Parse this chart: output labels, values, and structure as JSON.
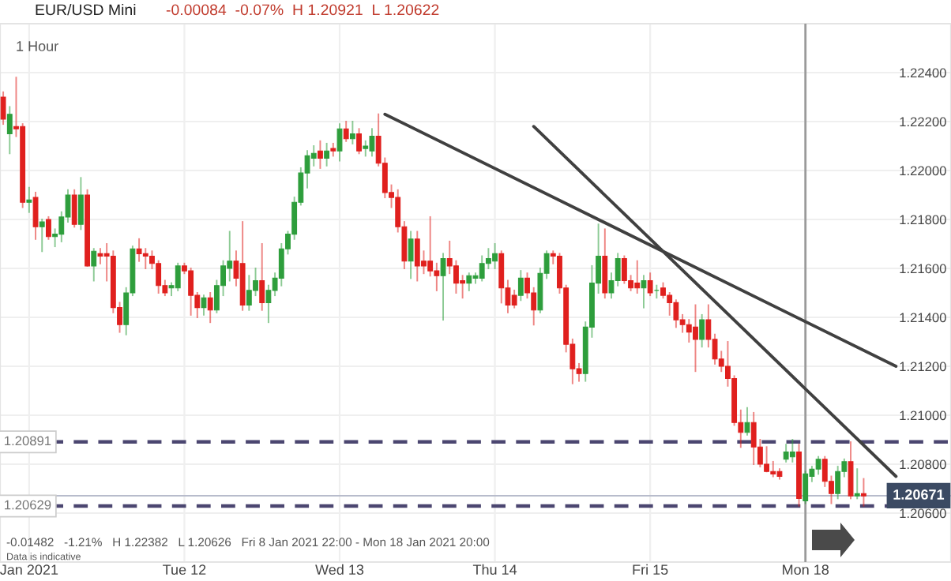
{
  "chart_data": {
    "type": "candlestick",
    "title": "EUR/USD Mini",
    "subtitle": "-0.00084  -0.07%  H 1.20921  L 1.20622",
    "annotations": [
      "1 Hour",
      "-0.01482   -1.21%   H 1.22382   L 1.20626   Fri 8 Jan 2021 22:00 - Mon 18 Jan 2021 20:00",
      "Data is indicative"
    ],
    "categories": [
      null,
      null,
      null,
      null,
      "Jan 2021",
      null,
      null,
      null,
      null,
      null,
      null,
      null,
      null,
      null,
      null,
      null,
      null,
      null,
      null,
      null,
      null,
      null,
      null,
      null,
      null,
      null,
      null,
      null,
      "Tue 12",
      null,
      null,
      null,
      null,
      null,
      null,
      null,
      null,
      null,
      null,
      null,
      null,
      null,
      null,
      null,
      null,
      null,
      null,
      null,
      null,
      null,
      null,
      null,
      "Wed 13",
      null,
      null,
      null,
      null,
      null,
      null,
      null,
      null,
      null,
      null,
      null,
      null,
      null,
      null,
      null,
      null,
      null,
      null,
      null,
      null,
      null,
      null,
      null,
      "Thu 14",
      null,
      null,
      null,
      null,
      null,
      null,
      null,
      null,
      null,
      null,
      null,
      null,
      null,
      null,
      null,
      null,
      null,
      null,
      null,
      null,
      null,
      null,
      null,
      "Fri 15",
      null,
      null,
      null,
      null,
      null,
      null,
      null,
      null,
      null,
      null,
      null,
      null,
      null,
      null,
      null,
      null,
      null,
      null,
      null,
      null,
      null,
      null,
      null,
      "Mon 18",
      null,
      null,
      null,
      null,
      null,
      null,
      null,
      null,
      null,
      null,
      null,
      null,
      null,
      null,
      null,
      null,
      null,
      null,
      null,
      null,
      null,
      null
    ],
    "ohlc": [
      [
        1.223,
        1.2232,
        1.2219,
        1.2221
      ],
      [
        1.2215,
        1.2226,
        1.2207,
        1.2223
      ],
      [
        1.2218,
        1.2238,
        1.2214,
        1.2217
      ],
      [
        1.2218,
        1.2219,
        1.2185,
        1.2187
      ],
      [
        1.2187,
        1.2193,
        1.2183,
        1.2188
      ],
      [
        1.2189,
        1.2191,
        1.2172,
        1.2177
      ],
      [
        1.2177,
        1.218,
        1.2167,
        1.2179
      ],
      [
        1.218,
        1.2181,
        1.2172,
        1.2173
      ],
      [
        1.2173,
        1.2176,
        1.2169,
        1.2174
      ],
      [
        1.2174,
        1.2183,
        1.2171,
        1.2181
      ],
      [
        1.2181,
        1.2192,
        1.2179,
        1.219
      ],
      [
        1.219,
        1.2192,
        1.2177,
        1.2178
      ],
      [
        1.2178,
        1.2197,
        1.2176,
        1.219
      ],
      [
        1.219,
        1.2192,
        1.2161,
        1.2161
      ],
      [
        1.2161,
        1.2168,
        1.2155,
        1.2167
      ],
      [
        1.2166,
        1.2168,
        1.2162,
        1.2165
      ],
      [
        1.2166,
        1.217,
        1.2155,
        1.2165
      ],
      [
        1.2165,
        1.2167,
        1.2142,
        1.2144
      ],
      [
        1.2144,
        1.2146,
        1.2134,
        1.2137
      ],
      [
        1.2137,
        1.2152,
        1.2133,
        1.215
      ],
      [
        1.215,
        1.2169,
        1.2149,
        1.2168
      ],
      [
        1.2168,
        1.2172,
        1.2163,
        1.2166
      ],
      [
        1.2166,
        1.2168,
        1.216,
        1.2165
      ],
      [
        1.2165,
        1.2167,
        1.216,
        1.2162
      ],
      [
        1.2162,
        1.2163,
        1.215,
        1.2153
      ],
      [
        1.2153,
        1.2155,
        1.2149,
        1.215
      ],
      [
        1.2152,
        1.2154,
        1.2149,
        1.2153
      ],
      [
        1.2152,
        1.2162,
        1.2151,
        1.2161
      ],
      [
        1.2161,
        1.2162,
        1.2158,
        1.2159
      ],
      [
        1.2159,
        1.216,
        1.2141,
        1.2149
      ],
      [
        1.2149,
        1.215,
        1.214,
        1.2144
      ],
      [
        1.2144,
        1.2149,
        1.2141,
        1.2148
      ],
      [
        1.2148,
        1.215,
        1.2138,
        1.2143
      ],
      [
        1.2143,
        1.2155,
        1.2142,
        1.2153
      ],
      [
        1.2153,
        1.2163,
        1.2149,
        1.2161
      ],
      [
        1.216,
        1.2175,
        1.2155,
        1.2163
      ],
      [
        1.2163,
        1.2167,
        1.2153,
        1.2156
      ],
      [
        1.2162,
        1.2179,
        1.2143,
        1.2145
      ],
      [
        1.2145,
        1.2157,
        1.2143,
        1.2151
      ],
      [
        1.2151,
        1.216,
        1.2149,
        1.2155
      ],
      [
        1.2155,
        1.217,
        1.2143,
        1.2146
      ],
      [
        1.2146,
        1.2153,
        1.2138,
        1.2151
      ],
      [
        1.2151,
        1.2158,
        1.2149,
        1.2156
      ],
      [
        1.2156,
        1.217,
        1.2153,
        1.2168
      ],
      [
        1.2168,
        1.2175,
        1.2166,
        1.2174
      ],
      [
        1.2174,
        1.2189,
        1.2172,
        1.2187
      ],
      [
        1.2187,
        1.2201,
        1.2186,
        1.2199
      ],
      [
        1.2199,
        1.2208,
        1.2193,
        1.2206
      ],
      [
        1.2205,
        1.221,
        1.2202,
        1.2207
      ],
      [
        1.2208,
        1.2212,
        1.2201,
        1.2205
      ],
      [
        1.2205,
        1.2211,
        1.2202,
        1.2208
      ],
      [
        1.2209,
        1.2211,
        1.2206,
        1.2208
      ],
      [
        1.2208,
        1.2219,
        1.2204,
        1.2217
      ],
      [
        1.2217,
        1.222,
        1.2212,
        1.2213
      ],
      [
        1.2213,
        1.222,
        1.2211,
        1.2215
      ],
      [
        1.2215,
        1.2217,
        1.2207,
        1.2208
      ],
      [
        1.2209,
        1.2212,
        1.2206,
        1.221
      ],
      [
        1.2208,
        1.2217,
        1.2206,
        1.2214
      ],
      [
        1.2214,
        1.2223,
        1.2202,
        1.2203
      ],
      [
        1.2203,
        1.2205,
        1.2189,
        1.2191
      ],
      [
        1.2191,
        1.2194,
        1.2185,
        1.2189
      ],
      [
        1.2189,
        1.2192,
        1.2175,
        1.2177
      ],
      [
        1.2177,
        1.2179,
        1.216,
        1.2163
      ],
      [
        1.2163,
        1.2175,
        1.2156,
        1.2172
      ],
      [
        1.2172,
        1.2175,
        1.2155,
        1.2161
      ],
      [
        1.2163,
        1.2167,
        1.2158,
        1.2161
      ],
      [
        1.2163,
        1.2181,
        1.2157,
        1.2159
      ],
      [
        1.2159,
        1.2162,
        1.2151,
        1.2157
      ],
      [
        1.2157,
        1.2166,
        1.2139,
        1.2164
      ],
      [
        1.2164,
        1.2171,
        1.2158,
        1.2161
      ],
      [
        1.2161,
        1.2163,
        1.215,
        1.2154
      ],
      [
        1.2155,
        1.2157,
        1.2148,
        1.2154
      ],
      [
        1.2154,
        1.2158,
        1.2151,
        1.2157
      ],
      [
        1.2156,
        1.2158,
        1.2154,
        1.2157
      ],
      [
        1.2156,
        1.2165,
        1.2155,
        1.2162
      ],
      [
        1.2162,
        1.2168,
        1.216,
        1.2164
      ],
      [
        1.2163,
        1.217,
        1.216,
        1.2166
      ],
      [
        1.2166,
        1.2167,
        1.2146,
        1.2152
      ],
      [
        1.2152,
        1.2155,
        1.2142,
        1.2145
      ],
      [
        1.2149,
        1.2151,
        1.2144,
        1.2145
      ],
      [
        1.2149,
        1.2159,
        1.2147,
        1.2156
      ],
      [
        1.2156,
        1.2158,
        1.2148,
        1.215
      ],
      [
        1.215,
        1.2152,
        1.2137,
        1.2143
      ],
      [
        1.2143,
        1.216,
        1.2142,
        1.2158
      ],
      [
        1.2158,
        1.2167,
        1.2156,
        1.2166
      ],
      [
        1.2166,
        1.2167,
        1.2162,
        1.2165
      ],
      [
        1.2165,
        1.2166,
        1.215,
        1.2152
      ],
      [
        1.2152,
        1.2153,
        1.2126,
        1.2129
      ],
      [
        1.2129,
        1.2131,
        1.2113,
        1.2119
      ],
      [
        1.2119,
        1.2121,
        1.2114,
        1.2117
      ],
      [
        1.2117,
        1.2138,
        1.2114,
        1.2136
      ],
      [
        1.2136,
        1.2161,
        1.2132,
        1.2154
      ],
      [
        1.2154,
        1.2178,
        1.215,
        1.2165
      ],
      [
        1.2165,
        1.2176,
        1.2148,
        1.215
      ],
      [
        1.215,
        1.2158,
        1.2148,
        1.2155
      ],
      [
        1.2155,
        1.2166,
        1.2153,
        1.2164
      ],
      [
        1.2164,
        1.2165,
        1.2154,
        1.2155
      ],
      [
        1.2155,
        1.2157,
        1.2151,
        1.2152
      ],
      [
        1.2154,
        1.2163,
        1.215,
        1.2152
      ],
      [
        1.2152,
        1.2157,
        1.2144,
        1.2155
      ],
      [
        1.2155,
        1.2158,
        1.2149,
        1.215
      ],
      [
        1.2151,
        1.2153,
        1.2148,
        1.2151
      ],
      [
        1.2152,
        1.2154,
        1.2148,
        1.2149
      ],
      [
        1.2149,
        1.215,
        1.2141,
        1.2146
      ],
      [
        1.2146,
        1.2147,
        1.2136,
        1.2139
      ],
      [
        1.2139,
        1.2141,
        1.2134,
        1.2137
      ],
      [
        1.2137,
        1.2139,
        1.213,
        1.2134
      ],
      [
        1.2136,
        1.2145,
        1.2118,
        1.2131
      ],
      [
        1.2131,
        1.2141,
        1.2128,
        1.2139
      ],
      [
        1.2139,
        1.2145,
        1.2128,
        1.2131
      ],
      [
        1.2131,
        1.2133,
        1.2121,
        1.2123
      ],
      [
        1.2123,
        1.2126,
        1.2118,
        1.212
      ],
      [
        1.212,
        1.213,
        1.2112,
        1.2115
      ],
      [
        1.2115,
        1.2116,
        1.2096,
        1.2097
      ],
      [
        1.2097,
        1.2102,
        1.2087,
        1.2093
      ],
      [
        1.2093,
        1.2103,
        1.2092,
        1.2097
      ],
      [
        1.2097,
        1.2101,
        1.208,
        1.2087
      ],
      [
        1.2087,
        1.209,
        1.2079,
        1.208
      ],
      [
        1.208,
        1.2087,
        1.2077,
        1.2077
      ],
      [
        1.2077,
        1.2081,
        1.2075,
        1.2076
      ],
      [
        1.2077,
        1.2078,
        1.2074,
        1.2075
      ],
      [
        1.2082,
        1.2088,
        1.2081,
        1.2085
      ],
      [
        1.2083,
        1.209,
        1.2081,
        1.2085
      ],
      [
        1.2085,
        1.2088,
        1.2063,
        1.2066
      ],
      [
        1.2065,
        1.2077,
        1.2064,
        1.2076
      ],
      [
        1.2075,
        1.2079,
        1.2073,
        1.2078
      ],
      [
        1.2078,
        1.2083,
        1.2076,
        1.2082
      ],
      [
        1.2082,
        1.2083,
        1.2071,
        1.2073
      ],
      [
        1.2073,
        1.2075,
        1.2064,
        1.2068
      ],
      [
        1.2068,
        1.2079,
        1.2066,
        1.2077
      ],
      [
        1.2077,
        1.2082,
        1.2075,
        1.2081
      ],
      [
        1.2081,
        1.2089,
        1.2066,
        1.2067
      ],
      [
        1.2067,
        1.2078,
        1.2066,
        1.2068
      ],
      [
        1.2068,
        1.2074,
        1.2063,
        1.2067
      ],
      null,
      null,
      null,
      null,
      null,
      null,
      null,
      null,
      null,
      null,
      null,
      null,
      null
    ],
    "colors": [
      "#e0201e",
      "#2e9e3c",
      "#e0201e",
      "#e0201e",
      "#2e9e3c",
      "#e0201e",
      "#2e9e3c",
      "#e0201e",
      "#2e9e3c",
      "#2e9e3c",
      "#2e9e3c",
      "#e0201e",
      "#2e9e3c",
      "#e0201e",
      "#2e9e3c",
      "#e0201e",
      "#e0201e",
      "#e0201e",
      "#e0201e",
      "#2e9e3c",
      "#2e9e3c",
      "#e0201e",
      "#e0201e",
      "#e0201e",
      "#e0201e",
      "#e0201e",
      "#2e9e3c",
      "#2e9e3c",
      "#e0201e",
      "#e0201e",
      "#e0201e",
      "#2e9e3c",
      "#e0201e",
      "#2e9e3c",
      "#2e9e3c",
      "#2e9e3c",
      "#e0201e",
      "#e0201e",
      "#2e9e3c",
      "#2e9e3c",
      "#e0201e",
      "#2e9e3c",
      "#2e9e3c",
      "#2e9e3c",
      "#2e9e3c",
      "#2e9e3c",
      "#2e9e3c",
      "#2e9e3c",
      "#2e9e3c",
      "#e0201e",
      "#2e9e3c",
      "#e0201e",
      "#2e9e3c",
      "#e0201e",
      "#2e9e3c",
      "#e0201e",
      "#2e9e3c",
      "#2e9e3c",
      "#e0201e",
      "#e0201e",
      "#e0201e",
      "#e0201e",
      "#e0201e",
      "#2e9e3c",
      "#e0201e",
      "#e0201e",
      "#e0201e",
      "#e0201e",
      "#2e9e3c",
      "#e0201e",
      "#e0201e",
      "#e0201e",
      "#2e9e3c",
      "#2e9e3c",
      "#2e9e3c",
      "#2e9e3c",
      "#2e9e3c",
      "#e0201e",
      "#e0201e",
      "#e0201e",
      "#2e9e3c",
      "#e0201e",
      "#e0201e",
      "#2e9e3c",
      "#2e9e3c",
      "#e0201e",
      "#e0201e",
      "#e0201e",
      "#e0201e",
      "#e0201e",
      "#2e9e3c",
      "#2e9e3c",
      "#2e9e3c",
      "#e0201e",
      "#2e9e3c",
      "#2e9e3c",
      "#e0201e",
      "#e0201e",
      "#e0201e",
      "#2e9e3c",
      "#e0201e",
      "#2e9e3c",
      "#e0201e",
      "#e0201e",
      "#e0201e",
      "#e0201e",
      "#e0201e",
      "#e0201e",
      "#2e9e3c",
      "#e0201e",
      "#e0201e",
      "#e0201e",
      "#e0201e",
      "#e0201e",
      "#e0201e",
      "#2e9e3c",
      "#e0201e",
      "#e0201e",
      "#e0201e",
      "#e0201e",
      "#e0201e",
      "#2e9e3c",
      "#2e9e3c",
      "#e0201e",
      "#2e9e3c",
      "#2e9e3c",
      "#2e9e3c",
      "#e0201e",
      "#e0201e",
      "#2e9e3c",
      "#2e9e3c",
      "#e0201e",
      "#2e9e3c",
      "#e0201e",
      null,
      null,
      null,
      null,
      null,
      null,
      null,
      null,
      null,
      null,
      null,
      null,
      null
    ],
    "series": [
      {
        "type": "line",
        "color": "#404040",
        "values": [
          null,
          null,
          null,
          null,
          null,
          null,
          null,
          null,
          null,
          null,
          null,
          null,
          null,
          null,
          null,
          null,
          null,
          null,
          null,
          null,
          null,
          null,
          null,
          null,
          null,
          null,
          null,
          null,
          null,
          null,
          null,
          null,
          null,
          null,
          null,
          null,
          null,
          null,
          null,
          null,
          null,
          null,
          null,
          null,
          null,
          null,
          null,
          null,
          null,
          null,
          null,
          null,
          null,
          null,
          null,
          null,
          null,
          null,
          null,
          1.2223,
          null,
          null,
          null,
          null,
          null,
          null,
          null,
          null,
          null,
          null,
          null,
          null,
          null,
          null,
          null,
          null,
          null,
          null,
          null,
          null,
          null,
          null,
          null,
          null,
          null,
          null,
          null,
          null,
          null,
          null,
          null,
          null,
          null,
          null,
          null,
          null,
          null,
          null,
          null,
          null,
          null,
          null,
          null,
          null,
          null,
          null,
          null,
          null,
          null,
          null,
          null,
          null,
          null,
          null,
          null,
          null,
          null,
          null,
          null,
          null,
          null,
          null,
          null,
          null,
          null,
          null,
          null,
          null,
          null,
          null,
          null,
          null,
          null,
          null,
          null,
          null,
          null,
          null,
          1.212,
          null,
          null,
          null,
          null,
          null,
          null,
          null,
          null
        ]
      },
      {
        "type": "line",
        "color": "#404040",
        "values": [
          null,
          null,
          null,
          null,
          null,
          null,
          null,
          null,
          null,
          null,
          null,
          null,
          null,
          null,
          null,
          null,
          null,
          null,
          null,
          null,
          null,
          null,
          null,
          null,
          null,
          null,
          null,
          null,
          null,
          null,
          null,
          null,
          null,
          null,
          null,
          null,
          null,
          null,
          null,
          null,
          null,
          null,
          null,
          null,
          null,
          null,
          null,
          null,
          null,
          null,
          null,
          null,
          null,
          null,
          null,
          null,
          null,
          null,
          null,
          null,
          null,
          null,
          null,
          null,
          null,
          null,
          null,
          null,
          null,
          null,
          null,
          null,
          null,
          null,
          null,
          null,
          null,
          null,
          null,
          null,
          null,
          null,
          1.2218,
          null,
          null,
          null,
          null,
          null,
          null,
          null,
          null,
          null,
          null,
          null,
          null,
          null,
          null,
          null,
          null,
          null,
          null,
          null,
          null,
          null,
          null,
          null,
          null,
          null,
          null,
          null,
          null,
          null,
          null,
          null,
          null,
          null,
          null,
          null,
          null,
          null,
          null,
          null,
          null,
          null,
          null,
          null,
          null,
          null,
          null,
          null,
          null,
          null,
          null,
          null,
          null,
          null,
          null,
          null,
          1.2075,
          null,
          null,
          null,
          null,
          null,
          null,
          null,
          null
        ]
      }
    ],
    "ref_lines": [
      {
        "axis": "y",
        "value": 1.20891,
        "label": "1.20891",
        "color": "#4b4670",
        "line_style": "dashed"
      },
      {
        "axis": "y",
        "value": 1.20629,
        "label": "1.20629",
        "color": "#4b4670",
        "line_style": "dashed"
      },
      {
        "axis": "y",
        "value": 1.20671,
        "label": "1.20671",
        "color": "#b8bccc",
        "line_style": "solid"
      },
      {
        "axis": "x",
        "value": "Mon 18",
        "color": "#9a9a9a",
        "line_style": "solid"
      }
    ],
    "ylim": [
      1.204,
      1.226
    ],
    "yticks": [
      {
        "value": 1.206,
        "label": "1.20600"
      },
      {
        "value": 1.208,
        "label": "1.20800"
      },
      {
        "value": 1.21,
        "label": "1.21000"
      },
      {
        "value": 1.212,
        "label": "1.21200"
      },
      {
        "value": 1.214,
        "label": "1.21400"
      },
      {
        "value": 1.216,
        "label": "1.21600"
      },
      {
        "value": 1.218,
        "label": "1.21800"
      },
      {
        "value": 1.22,
        "label": "1.22000"
      },
      {
        "value": 1.222,
        "label": "1.22200"
      },
      {
        "value": 1.224,
        "label": "1.22400"
      }
    ],
    "grid": true,
    "legend": false
  }
}
